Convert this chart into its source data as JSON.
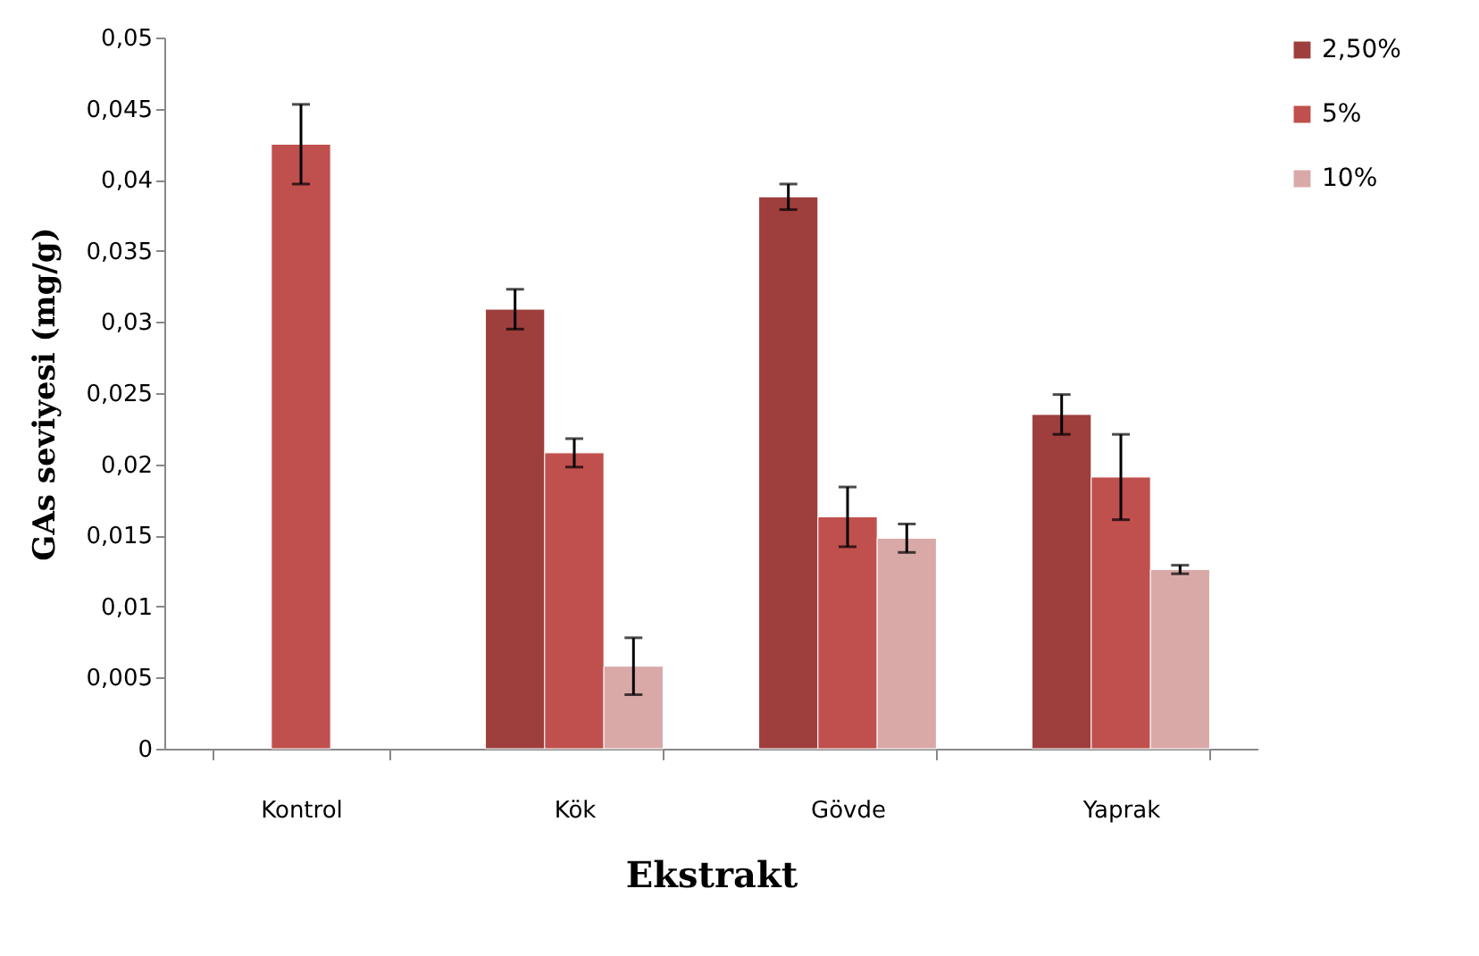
{
  "chart_data": {
    "type": "bar",
    "xlabel": "Ekstrakt",
    "ylabel": "GAs seviyesi (mg/g)",
    "categories": [
      "Kontrol",
      "Kök",
      "Gövde",
      "Yaprak"
    ],
    "series": [
      {
        "name": "2,50%",
        "color": "#9e3f3d",
        "values": [
          null,
          0.0309,
          0.0388,
          0.0235
        ],
        "errors": [
          null,
          0.0014,
          0.0009,
          0.0014
        ]
      },
      {
        "name": "5%",
        "color": "#c0504d",
        "values": [
          0.0425,
          0.0208,
          0.0163,
          0.0191
        ],
        "errors": [
          0.0028,
          0.001,
          0.0021,
          0.003
        ]
      },
      {
        "name": "10%",
        "color": "#d9a9a8",
        "values": [
          null,
          0.0058,
          0.0148,
          0.0126
        ],
        "errors": [
          null,
          0.002,
          0.001,
          0.0003
        ]
      }
    ],
    "ylim": [
      0,
      0.05
    ],
    "yticks": [
      {
        "value": 0,
        "label": "0"
      },
      {
        "value": 0.005,
        "label": "0,005"
      },
      {
        "value": 0.01,
        "label": "0,01"
      },
      {
        "value": 0.015,
        "label": "0,015"
      },
      {
        "value": 0.02,
        "label": "0,02"
      },
      {
        "value": 0.025,
        "label": "0,025"
      },
      {
        "value": 0.03,
        "label": "0,03"
      },
      {
        "value": 0.035,
        "label": "0,035"
      },
      {
        "value": 0.04,
        "label": "0,04"
      },
      {
        "value": 0.045,
        "label": "0,045"
      },
      {
        "value": 0.05,
        "label": "0,05"
      }
    ],
    "grid": false,
    "legend": "right"
  }
}
